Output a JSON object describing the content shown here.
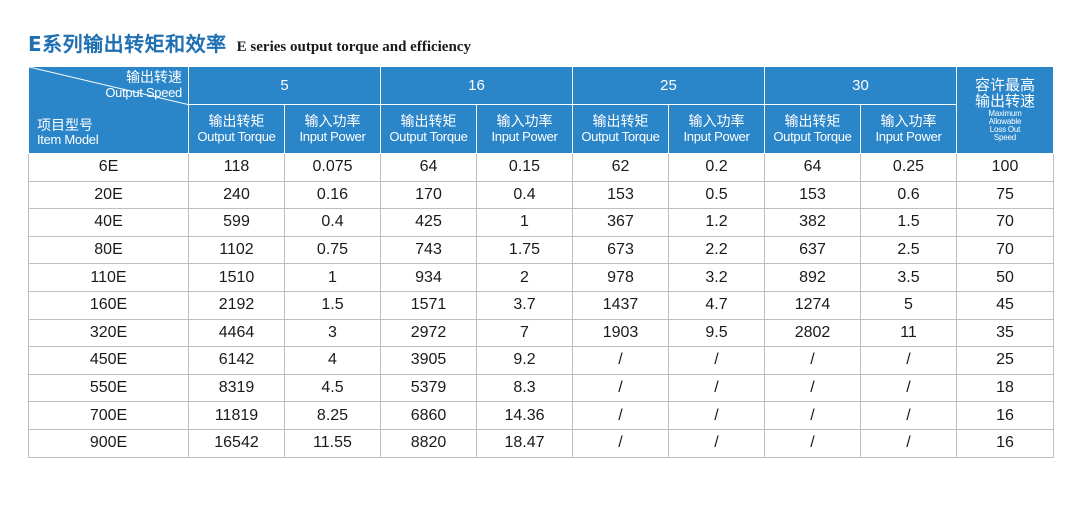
{
  "title": {
    "cn": "E系列输出转矩和效率",
    "en": "E series output torque and efficiency"
  },
  "table": {
    "corner": {
      "speed_cn": "输出转速",
      "speed_en": "Output Speed",
      "model_cn": "项目型号",
      "model_en": "Item Model"
    },
    "speeds": [
      "5",
      "16",
      "25",
      "30"
    ],
    "sub_headers": {
      "torque_cn": "输出转矩",
      "torque_en": "Output Torque",
      "power_cn": "输入功率",
      "power_en": "Input Power"
    },
    "max_speed": {
      "cn_line1": "容许最高",
      "cn_line2": "输出转速",
      "en_line1": "Maximum",
      "en_line2": "Allowable",
      "en_line3": "Loss Out",
      "en_line4": "Speed"
    },
    "rows": [
      [
        "6E",
        "118",
        "0.075",
        "64",
        "0.15",
        "62",
        "0.2",
        "64",
        "0.25",
        "100"
      ],
      [
        "20E",
        "240",
        "0.16",
        "170",
        "0.4",
        "153",
        "0.5",
        "153",
        "0.6",
        "75"
      ],
      [
        "40E",
        "599",
        "0.4",
        "425",
        "1",
        "367",
        "1.2",
        "382",
        "1.5",
        "70"
      ],
      [
        "80E",
        "1102",
        "0.75",
        "743",
        "1.75",
        "673",
        "2.2",
        "637",
        "2.5",
        "70"
      ],
      [
        "110E",
        "1510",
        "1",
        "934",
        "2",
        "978",
        "3.2",
        "892",
        "3.5",
        "50"
      ],
      [
        "160E",
        "2192",
        "1.5",
        "1571",
        "3.7",
        "1437",
        "4.7",
        "1274",
        "5",
        "45"
      ],
      [
        "320E",
        "4464",
        "3",
        "2972",
        "7",
        "1903",
        "9.5",
        "2802",
        "11",
        "35"
      ],
      [
        "450E",
        "6142",
        "4",
        "3905",
        "9.2",
        "/",
        "/",
        "/",
        "/",
        "25"
      ],
      [
        "550E",
        "8319",
        "4.5",
        "5379",
        "8.3",
        "/",
        "/",
        "/",
        "/",
        "18"
      ],
      [
        "700E",
        "11819",
        "8.25",
        "6860",
        "14.36",
        "/",
        "/",
        "/",
        "/",
        "16"
      ],
      [
        "900E",
        "16542",
        "11.55",
        "8820",
        "18.47",
        "/",
        "/",
        "/",
        "/",
        "16"
      ]
    ]
  }
}
